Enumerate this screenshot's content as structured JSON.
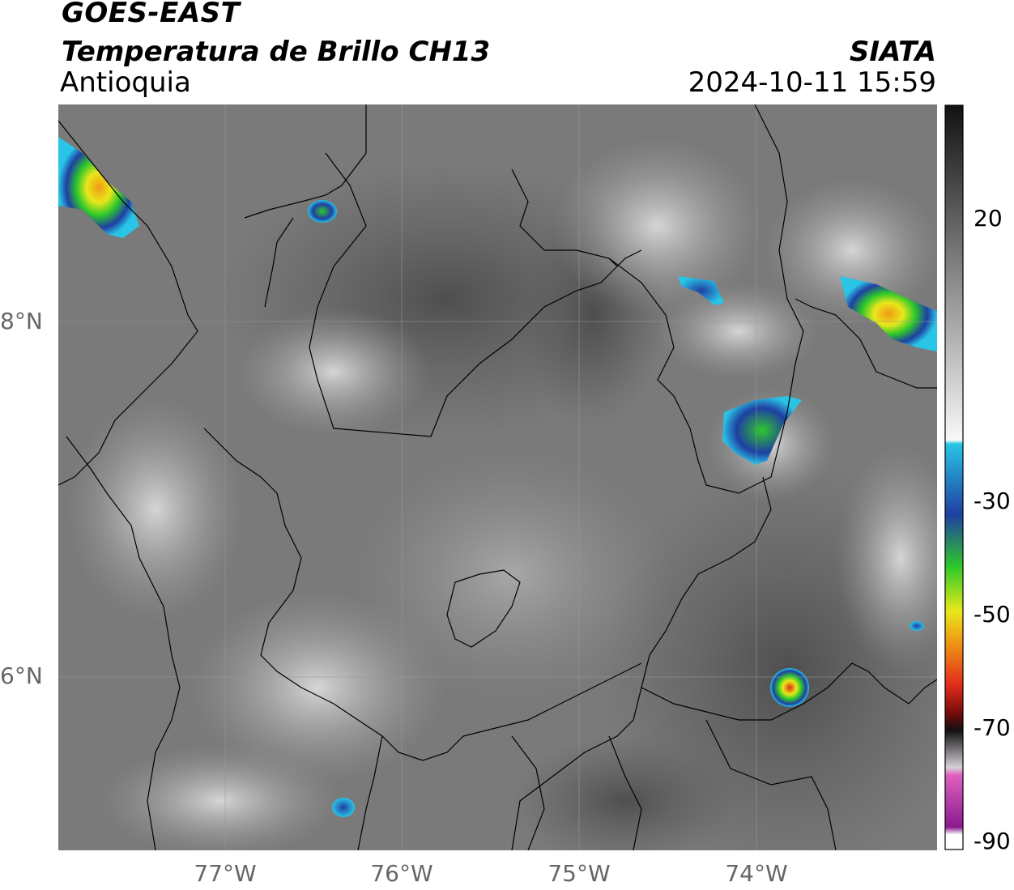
{
  "header": {
    "title": "GOES-EAST",
    "subtitle": "Temperatura de Brillo CH13",
    "region": "Antioquia",
    "brand": "SIATA",
    "datetime": "2024-10-11 15:59"
  },
  "map": {
    "lat_labels": [
      "8°N",
      "6°N"
    ],
    "lon_labels": [
      "77°W",
      "76°W",
      "75°W",
      "74°W"
    ],
    "background": "grayscale infrared brightness temperature",
    "colors": {
      "land_gray": "#6f6f6f",
      "cloud_light": "#d8d8d8",
      "cyan": "#29c4e6",
      "blue": "#1f3fa3",
      "green": "#2ec82a",
      "yellow": "#e8e81a",
      "orange": "#f09a16",
      "red": "#e02a1a"
    }
  },
  "colorbar": {
    "tick_labels": [
      "20",
      "-30",
      "-50",
      "-70",
      "-90"
    ]
  }
}
